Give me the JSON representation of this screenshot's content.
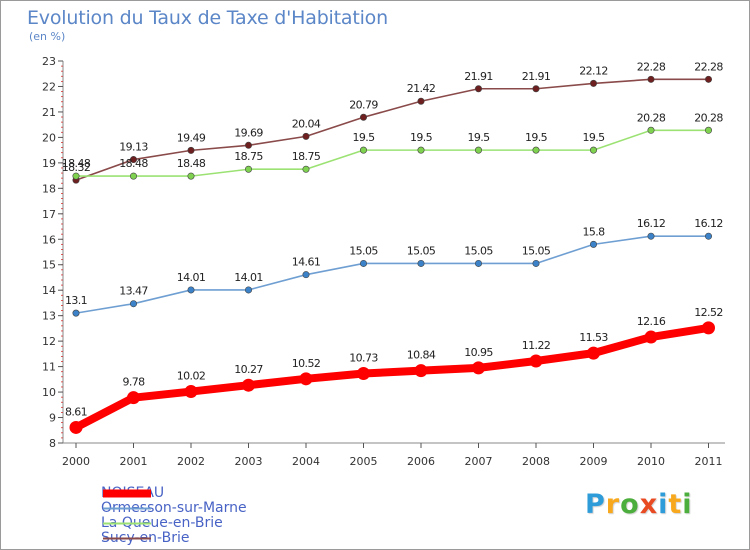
{
  "chart_data": {
    "type": "line",
    "title": "Evolution du Taux de Taxe d'Habitation",
    "subtitle": "(en %)",
    "x": [
      2000,
      2001,
      2002,
      2003,
      2004,
      2005,
      2006,
      2007,
      2008,
      2009,
      2010,
      2011
    ],
    "x_tick_labels": [
      "2000",
      "2001",
      "2002",
      "2003",
      "2004",
      "2005",
      "2006",
      "2007",
      "2008",
      "2009",
      "2010",
      "2011"
    ],
    "ylim": [
      8,
      23
    ],
    "y_ticks": [
      8,
      9,
      10,
      11,
      12,
      13,
      14,
      15,
      16,
      17,
      18,
      19,
      20,
      21,
      22,
      23
    ],
    "grid": false,
    "legend_position": "bottom-left",
    "series": [
      {
        "name": "NOISEAU",
        "color": "#ff0000",
        "marker_color": "#ff0000",
        "style": "thick",
        "values": [
          8.61,
          9.78,
          10.02,
          10.27,
          10.52,
          10.73,
          10.84,
          10.95,
          11.22,
          11.53,
          12.16,
          12.52
        ],
        "labels": [
          "8.61",
          "9.78",
          "10.02",
          "10.27",
          "10.52",
          "10.73",
          "10.84",
          "10.95",
          "11.22",
          "11.53",
          "12.16",
          "12.52"
        ]
      },
      {
        "name": "Ormesson-sur-Marne",
        "color": "#6f9fd2",
        "marker_color": "#3c82c8",
        "style": "thin",
        "values": [
          13.1,
          13.47,
          14.01,
          14.01,
          14.61,
          15.05,
          15.05,
          15.05,
          15.05,
          15.8,
          16.12,
          16.12
        ],
        "labels": [
          "13.1",
          "13.47",
          "14.01",
          "14.01",
          "14.61",
          "15.05",
          "15.05",
          "15.05",
          "15.05",
          "15.8",
          "16.12",
          "16.12"
        ]
      },
      {
        "name": "La Queue-en-Brie",
        "color": "#9be273",
        "marker_color": "#7fd24f",
        "style": "thin",
        "values": [
          18.48,
          18.48,
          18.48,
          18.75,
          18.75,
          19.5,
          19.5,
          19.5,
          19.5,
          19.5,
          20.28,
          20.28
        ],
        "labels": [
          "18.48",
          "18.48",
          "18.48",
          "18.75",
          "18.75",
          "19.5",
          "19.5",
          "19.5",
          "19.5",
          "19.5",
          "20.28",
          "20.28"
        ]
      },
      {
        "name": "Sucy-en-Brie",
        "color": "#8a4a4a",
        "marker_color": "#6e1f1f",
        "style": "thin",
        "values": [
          18.32,
          19.13,
          19.49,
          19.69,
          20.04,
          20.79,
          21.42,
          21.91,
          21.91,
          22.12,
          22.28,
          22.28
        ],
        "labels": [
          "18.32",
          "19.13",
          "19.49",
          "19.69",
          "20.04",
          "20.79",
          "21.42",
          "21.91",
          "21.91",
          "22.12",
          "22.28",
          "22.28"
        ]
      }
    ]
  },
  "brand": {
    "letters": [
      "P",
      "r",
      "o",
      "x",
      "i",
      "t",
      "i"
    ],
    "colors": [
      "#2e9cd8",
      "#f7a81d",
      "#4cae3c",
      "#e84a22",
      "#2e9cd8",
      "#f7a81d",
      "#4cae3c"
    ]
  }
}
